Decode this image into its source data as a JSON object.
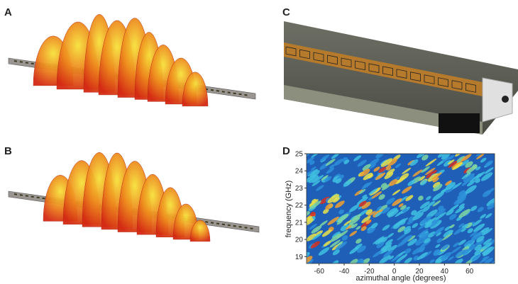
{
  "labels": [
    "A",
    "B",
    "C",
    "D"
  ],
  "chart_data": {
    "type": "heatmap",
    "xlabel": "azimuthal angle (degrees)",
    "ylabel": "frequency (GHz)",
    "xlim": [
      -70,
      80
    ],
    "ylim": [
      18.6,
      25
    ],
    "xticks": [
      -60,
      -40,
      -20,
      0,
      20,
      40,
      60
    ],
    "yticks": [
      19,
      20,
      21,
      22,
      23,
      24,
      25
    ]
  }
}
